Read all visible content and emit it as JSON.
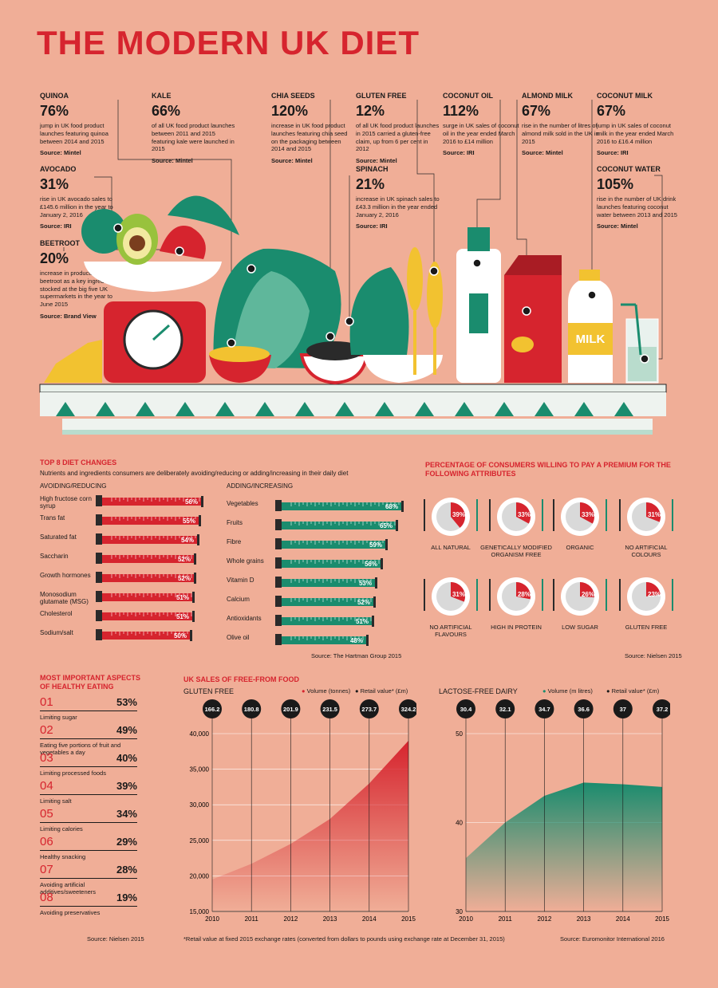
{
  "title": "THE MODERN UK DIET",
  "stats": [
    {
      "name": "QUINOA",
      "pct": "76%",
      "desc": "jump in UK food product launches featuring quinoa between 2014 and 2015",
      "src": "Source: Mintel"
    },
    {
      "name": "KALE",
      "pct": "66%",
      "desc": "of all UK food product launches between 2011 and 2015 featuring kale were launched in 2015",
      "src": "Source: Mintel"
    },
    {
      "name": "CHIA SEEDS",
      "pct": "120%",
      "desc": "increase in UK food product launches featuring chia seed on the packaging between 2014 and 2015",
      "src": "Source: Mintel"
    },
    {
      "name": "GLUTEN FREE",
      "pct": "12%",
      "desc": "of all UK food product launches in 2015 carried a gluten-free claim, up from 6 per cent in 2012",
      "src": "Source: Mintel"
    },
    {
      "name": "COCONUT OIL",
      "pct": "112%",
      "desc": "surge in UK sales of coconut oil in the year ended March 2016 to £14 million",
      "src": "Source: IRI"
    },
    {
      "name": "ALMOND MILK",
      "pct": "67%",
      "desc": "rise in the number of litres of almond milk sold in the UK in 2015",
      "src": "Source: Mintel"
    },
    {
      "name": "COCONUT MILK",
      "pct": "67%",
      "desc": "jump in UK sales of coconut milk in the year ended March 2016 to £16.4 million",
      "src": "Source: IRI"
    },
    {
      "name": "AVOCADO",
      "pct": "31%",
      "desc": "rise in UK avocado sales to £145.6 million in the year to January 2, 2016",
      "src": "Source: IRI"
    },
    {
      "name": "SPINACH",
      "pct": "21%",
      "desc": "increase in UK spinach sales to £43.3 million in the year ended January 2, 2016",
      "src": "Source: IRI"
    },
    {
      "name": "COCONUT WATER",
      "pct": "105%",
      "desc": "rise in the number of UK drink launches featuring coconut water between 2013 and 2015",
      "src": "Source: Mintel"
    },
    {
      "name": "BEETROOT",
      "pct": "20%",
      "desc": "increase in products containing beetroot as a key ingredient stocked at the big five UK supermarkets in the year to June 2015",
      "src": "Source: Brand View"
    }
  ],
  "milk_label": "MILK",
  "diet": {
    "title": "TOP 8 DIET CHANGES",
    "subtitle": "Nutrients and ingredients consumers are deliberately avoiding/reducing or adding/increasing in their daily diet",
    "avoid_title": "AVOIDING/REDUCING",
    "add_title": "ADDING/INCREASING",
    "source": "Source: The Hartman Group 2015"
  },
  "premium": {
    "title": "PERCENTAGE OF CONSUMERS WILLING TO PAY A PREMIUM FOR THE FOLLOWING ATTRIBUTES",
    "source": "Source: Nielsen 2015"
  },
  "aspects": {
    "title": "MOST IMPORTANT ASPECTS OF HEALTHY EATING",
    "items": [
      {
        "num": "01",
        "pct": "53%",
        "label": "Limiting sugar"
      },
      {
        "num": "02",
        "pct": "49%",
        "label": "Eating five portions of fruit and vegetables a day"
      },
      {
        "num": "03",
        "pct": "40%",
        "label": "Limiting processed foods"
      },
      {
        "num": "04",
        "pct": "39%",
        "label": "Limiting salt"
      },
      {
        "num": "05",
        "pct": "34%",
        "label": "Limiting calories"
      },
      {
        "num": "06",
        "pct": "29%",
        "label": "Healthy snacking"
      },
      {
        "num": "07",
        "pct": "28%",
        "label": "Avoiding artificial additives/sweeteners"
      },
      {
        "num": "08",
        "pct": "19%",
        "label": "Avoiding preservatives"
      }
    ],
    "source": "Source: Nielsen 2015"
  },
  "sales": {
    "title": "UK SALES OF FREE-FROM FOOD",
    "gf_title": "GLUTEN FREE",
    "gf_vol_legend": "Volume (tonnes)",
    "gf_ret_legend": "Retail value* (£m)",
    "lf_title": "LACTOSE-FREE DAIRY",
    "lf_vol_legend": "Volume (m litres)",
    "lf_ret_legend": "Retail value* (£m)",
    "footnote": "*Retail value at fixed 2015 exchange rates (converted from dollars to pounds using exchange rate at December 31, 2015)",
    "source": "Source: Euromonitor International 2016"
  },
  "colors": {
    "red": "#d6242e",
    "green": "#1a8c6e",
    "bg": "#f0ae97"
  },
  "chart_data": [
    {
      "type": "bar",
      "title": "AVOIDING/REDUCING",
      "categories": [
        "High fructose corn syrup",
        "Trans fat",
        "Saturated fat",
        "Saccharin",
        "Growth hormones",
        "Monosodium glutamate (MSG)",
        "Cholesterol",
        "Sodium/salt"
      ],
      "values": [
        56,
        55,
        54,
        52,
        52,
        51,
        51,
        50
      ],
      "value_labels": [
        "56%",
        "55%",
        "54%",
        "52%",
        "52%",
        "51%",
        "51%",
        "50%"
      ],
      "color": "#d6242e"
    },
    {
      "type": "bar",
      "title": "ADDING/INCREASING",
      "categories": [
        "Vegetables",
        "Fruits",
        "Fibre",
        "Whole grains",
        "Vitamin D",
        "Calcium",
        "Antioxidants",
        "Olive oil"
      ],
      "values": [
        68,
        65,
        59,
        56,
        53,
        52,
        51,
        48
      ],
      "value_labels": [
        "68%",
        "65%",
        "59%",
        "56%",
        "53%",
        "52%",
        "51%",
        "48%"
      ],
      "color": "#1a8c6e"
    },
    {
      "type": "pie",
      "categories": [
        "ALL NATURAL",
        "GENETICALLY MODIFIED ORGANISM FREE",
        "ORGANIC",
        "NO ARTIFICIAL COLOURS",
        "NO ARTIFICIAL FLAVOURS",
        "HIGH IN PROTEIN",
        "LOW SUGAR",
        "GLUTEN FREE"
      ],
      "values": [
        39,
        33,
        33,
        31,
        31,
        28,
        26,
        23
      ],
      "value_labels": [
        "39%",
        "33%",
        "33%",
        "31%",
        "31%",
        "28%",
        "26%",
        "23%"
      ]
    },
    {
      "type": "area",
      "title": "GLUTEN FREE",
      "x": [
        "2010",
        "2011",
        "2012",
        "2013",
        "2014",
        "2015"
      ],
      "series": [
        {
          "name": "Volume (tonnes)",
          "values": [
            19500,
            21700,
            24500,
            28000,
            33000,
            39000
          ]
        },
        {
          "name": "Retail value* (£m)",
          "values": [
            166.2,
            180.8,
            201.9,
            231.5,
            273.7,
            324.2
          ],
          "labels": [
            "166.2",
            "180.8",
            "201.9",
            "231.5",
            "273.7",
            "324.2"
          ]
        }
      ],
      "ylim": [
        15000,
        40000
      ],
      "yticks": [
        "15,000",
        "20,000",
        "25,000",
        "30,000",
        "35,000",
        "40,000"
      ]
    },
    {
      "type": "area",
      "title": "LACTOSE-FREE DAIRY",
      "x": [
        "2010",
        "2011",
        "2012",
        "2013",
        "2014",
        "2015"
      ],
      "series": [
        {
          "name": "Volume (m litres)",
          "values": [
            36,
            40,
            43,
            44.5,
            44.3,
            44
          ]
        },
        {
          "name": "Retail value* (£m)",
          "values": [
            30.4,
            32.1,
            34.7,
            36.6,
            37,
            37.2
          ],
          "labels": [
            "30.4",
            "32.1",
            "34.7",
            "36.6",
            "37",
            "37.2"
          ]
        }
      ],
      "ylim": [
        30,
        50
      ],
      "yticks": [
        "30",
        "40",
        "50"
      ]
    }
  ]
}
